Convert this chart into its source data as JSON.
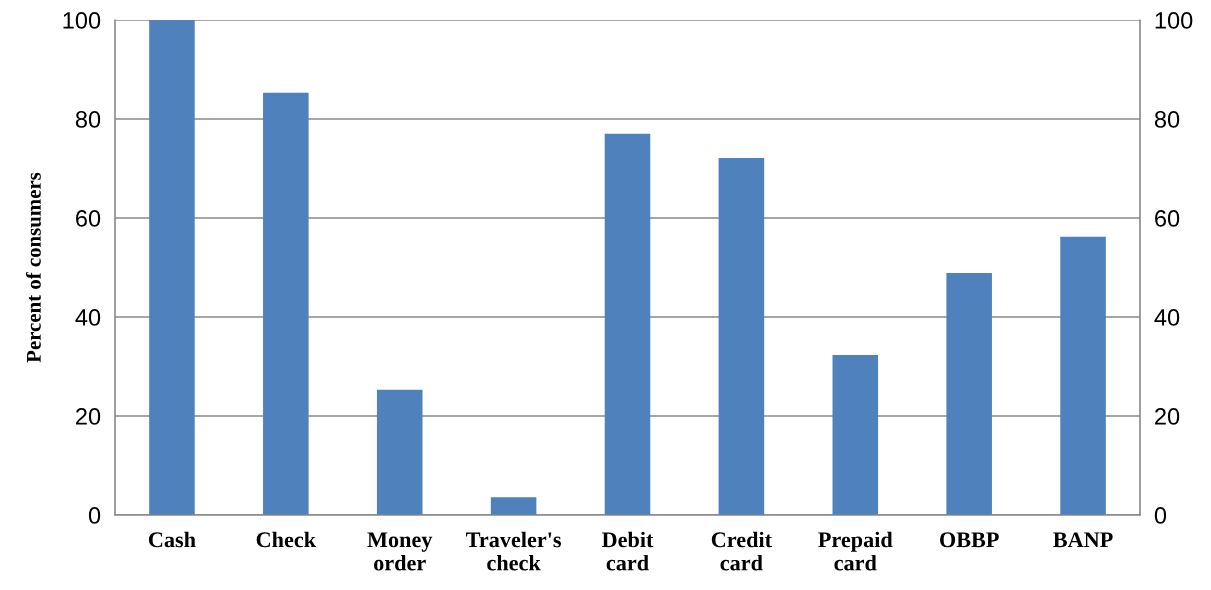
{
  "chart_data": {
    "type": "bar",
    "ylabel": "Percent of consumers",
    "categories": [
      "Cash",
      "Check",
      "Money\norder",
      "Traveler's\ncheck",
      "Debit\ncard",
      "Credit\ncard",
      "Prepaid\ncard",
      "OBBP",
      "BANP"
    ],
    "values": [
      100,
      85.3,
      25.3,
      3.6,
      77.0,
      72.1,
      32.3,
      48.9,
      56.2
    ],
    "color": "#4f81bd",
    "ylim": [
      0,
      100
    ],
    "yticks": [
      0,
      20,
      40,
      60,
      80,
      100
    ],
    "y2lim": [
      0,
      100
    ],
    "y2ticks": [
      0,
      20,
      40,
      60,
      80,
      100
    ],
    "grid": "y"
  }
}
